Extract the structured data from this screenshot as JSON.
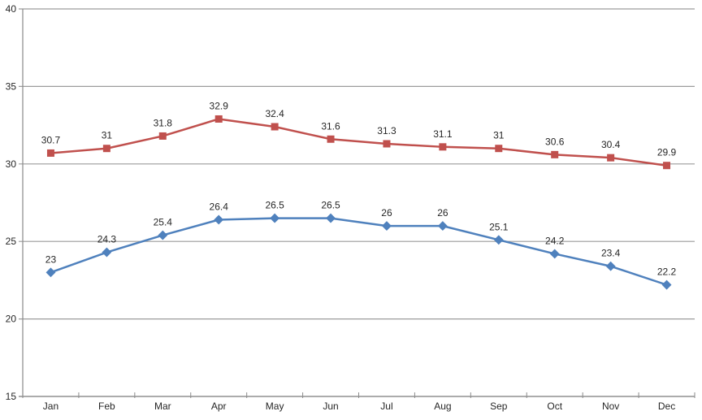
{
  "chart_data": {
    "type": "line",
    "title": "",
    "xlabel": "",
    "ylabel": "",
    "categories": [
      "Jan",
      "Feb",
      "Mar",
      "Apr",
      "May",
      "Jun",
      "Jul",
      "Aug",
      "Sep",
      "Oct",
      "Nov",
      "Dec"
    ],
    "series": [
      {
        "id": "blue-series",
        "marker": "diamond",
        "color": "#4F81BD",
        "values": [
          23,
          24.3,
          25.4,
          26.4,
          26.5,
          26.5,
          26,
          26,
          25.1,
          24.2,
          23.4,
          22.2
        ],
        "labels": [
          "23",
          "24.3",
          "25.4",
          "26.4",
          "26.5",
          "26.5",
          "26",
          "26",
          "25.1",
          "24.2",
          "23.4",
          "22.2"
        ]
      },
      {
        "id": "red-series",
        "marker": "square",
        "color": "#C0504D",
        "values": [
          30.7,
          31,
          31.8,
          32.9,
          32.4,
          31.6,
          31.3,
          31.1,
          31,
          30.6,
          30.4,
          29.9
        ],
        "labels": [
          "30.7",
          "31",
          "31.8",
          "32.9",
          "32.4",
          "31.6",
          "31.3",
          "31.1",
          "31",
          "30.6",
          "30.4",
          "29.9"
        ]
      }
    ],
    "ylim": [
      15,
      40
    ],
    "ytick_step": 5,
    "y_tick_labels": [
      "40",
      "35",
      "30",
      "25",
      "20",
      "15"
    ],
    "grid": true,
    "legend_position": "none",
    "data_labels": true,
    "colors": {
      "background": "#ffffff",
      "gridline": "#9c9c9c",
      "axis_line": "#8a8a8a",
      "axis_text": "#262626",
      "label_text": "#262626"
    }
  }
}
